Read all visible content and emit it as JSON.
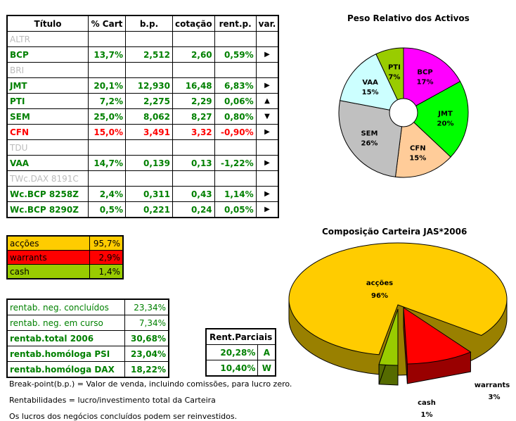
{
  "main_table": {
    "headers": [
      "Título",
      "% Cart",
      "b.p.",
      "cotação",
      "rent.p.",
      "var."
    ],
    "rows": [
      {
        "title": "ALTR",
        "style": "grey",
        "cells": [
          "",
          "",
          "",
          "",
          ""
        ]
      },
      {
        "title": "BCP",
        "style": "green",
        "cells": [
          "13,7%",
          "2,512",
          "2,60",
          "0,59%",
          "▶"
        ]
      },
      {
        "title": "BRI",
        "style": "grey",
        "cells": [
          "",
          "",
          "",
          "",
          ""
        ]
      },
      {
        "title": "JMT",
        "style": "green",
        "cells": [
          "20,1%",
          "12,930",
          "16,48",
          "6,83%",
          "▶"
        ]
      },
      {
        "title": "PTI",
        "style": "green",
        "cells": [
          "7,2%",
          "2,275",
          "2,29",
          "0,06%",
          "▲"
        ]
      },
      {
        "title": "SEM",
        "style": "green",
        "cells": [
          "25,0%",
          "8,062",
          "8,27",
          "0,80%",
          "▼"
        ]
      },
      {
        "title": "CFN",
        "style": "red",
        "cells": [
          "15,0%",
          "3,491",
          "3,32",
          "-0,90%",
          "▶"
        ]
      },
      {
        "title": "TDU",
        "style": "grey",
        "cells": [
          "",
          "",
          "",
          "",
          ""
        ]
      },
      {
        "title": "VAA",
        "style": "green",
        "cells": [
          "14,7%",
          "0,139",
          "0,13",
          "-1,22%",
          "▶"
        ]
      },
      {
        "title": "TWc.DAX 8191C",
        "style": "grey",
        "cells": [
          "",
          "",
          "",
          "",
          ""
        ]
      },
      {
        "title": "Wc.BCP 8258Z",
        "style": "green",
        "cells": [
          "2,4%",
          "0,311",
          "0,43",
          "1,14%",
          "▶"
        ]
      },
      {
        "title": "Wc.BCP 8290Z",
        "style": "green",
        "cells": [
          "0,5%",
          "0,221",
          "0,24",
          "0,05%",
          "▶"
        ]
      }
    ]
  },
  "allocation": [
    {
      "label": "acções",
      "value": "95,7%",
      "color": "#ffcc00"
    },
    {
      "label": "warrants",
      "value": "2,9%",
      "color": "#ff0000"
    },
    {
      "label": "cash",
      "value": "1,4%",
      "color": "#99cc00"
    }
  ],
  "returns": [
    {
      "label": "rentab. neg. concluídos",
      "value": "23,34%",
      "bold": false
    },
    {
      "label": "rentab. neg. em curso",
      "value": "7,34%",
      "bold": false
    },
    {
      "label": "rentab.total 2006",
      "value": "30,68%",
      "bold": true
    },
    {
      "label": "rentab.homóloga PSI",
      "value": "23,04%",
      "bold": true
    },
    {
      "label": "rentab.homóloga DAX",
      "value": "18,22%",
      "bold": true
    }
  ],
  "partial": {
    "header": "Rent.Parciais",
    "rows": [
      {
        "value": "20,28%",
        "code": "A"
      },
      {
        "value": "10,40%",
        "code": "W"
      }
    ]
  },
  "notes": [
    "Break-point(b.p.) = Valor de venda, incluindo comissões, para lucro zero.",
    "Rentabilidades = lucro/investimento total da Carteira",
    "Os lucros dos negócios concluídos podem ser reinvestidos."
  ],
  "chart_data": [
    {
      "type": "pie",
      "title": "Peso Relativo dos Activos",
      "categories": [
        "BCP",
        "JMT",
        "CFN",
        "SEM",
        "VAA",
        "PTI"
      ],
      "values": [
        17,
        20,
        15,
        26,
        15,
        7
      ],
      "colors": [
        "#ff00ff",
        "#00ff00",
        "#ffcc99",
        "#c0c0c0",
        "#ccffff",
        "#99cc00"
      ],
      "donut": true
    },
    {
      "type": "pie",
      "title": "Composição Carteira JAS*2006",
      "categories": [
        "acções",
        "warrants",
        "cash"
      ],
      "values": [
        96,
        3,
        1
      ],
      "colors": [
        "#ffcc00",
        "#ff0000",
        "#99cc00"
      ],
      "style": "3d-exploded"
    }
  ]
}
